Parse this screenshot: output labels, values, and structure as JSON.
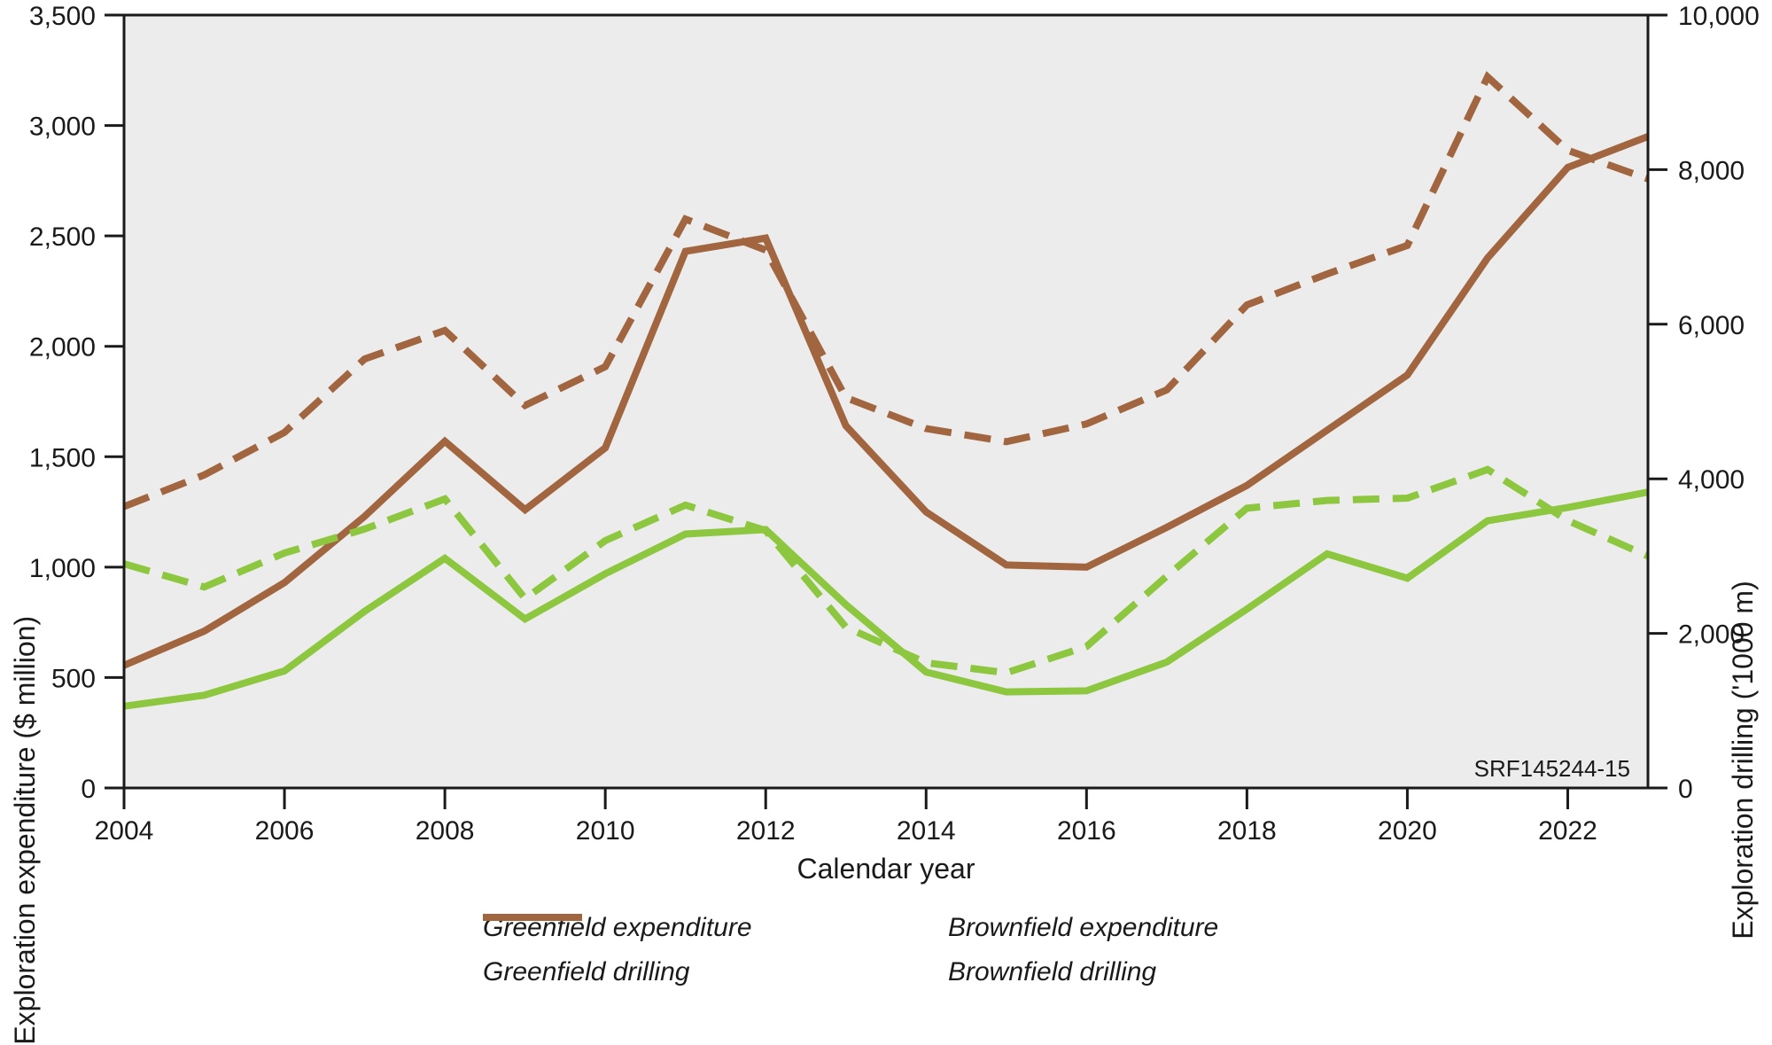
{
  "chart_data": {
    "type": "line",
    "x_label": "Calendar year",
    "x": [
      2004,
      2005,
      2006,
      2007,
      2008,
      2009,
      2010,
      2011,
      2012,
      2013,
      2014,
      2015,
      2016,
      2017,
      2018,
      2019,
      2020,
      2021,
      2022,
      2023
    ],
    "x_tick_years": [
      2004,
      2006,
      2008,
      2010,
      2012,
      2014,
      2016,
      2018,
      2020,
      2022
    ],
    "left_axis": {
      "label": "Exploration expenditure ($ million)",
      "min": 0,
      "max": 3500,
      "ticks": [
        0,
        500,
        1000,
        1500,
        2000,
        2500,
        3000,
        3500
      ]
    },
    "right_axis": {
      "label": "Exploration drilling ('1000 m)",
      "min": 0,
      "max": 10000,
      "ticks": [
        0,
        2000,
        4000,
        6000,
        8000,
        10000
      ]
    },
    "series": [
      {
        "name": "Brownfield drilling",
        "axis": "right",
        "style": "dashed",
        "color": "#a1653f",
        "values": [
          3640,
          4050,
          4600,
          5550,
          5920,
          4950,
          5450,
          7360,
          6960,
          5050,
          4650,
          4480,
          4710,
          5150,
          6250,
          6650,
          7020,
          9200,
          8250,
          7880
        ]
      },
      {
        "name": "Brownfield expenditure",
        "axis": "left",
        "style": "solid",
        "color": "#a1653f",
        "values": [
          555,
          710,
          930,
          1230,
          1570,
          1260,
          1540,
          2430,
          2490,
          1640,
          1250,
          1010,
          1000,
          1180,
          1370,
          1620,
          1870,
          2400,
          2810,
          2950
        ]
      },
      {
        "name": "Greenfield drilling",
        "axis": "right",
        "style": "dashed",
        "color": "#8dc63f",
        "values": [
          2900,
          2600,
          3040,
          3350,
          3740,
          2450,
          3200,
          3660,
          3330,
          2080,
          1620,
          1490,
          1830,
          2740,
          3620,
          3720,
          3750,
          4120,
          3460,
          3000
        ]
      },
      {
        "name": "Greenfield expenditure",
        "axis": "left",
        "style": "solid",
        "color": "#8dc63f",
        "values": [
          370,
          420,
          530,
          800,
          1040,
          765,
          970,
          1150,
          1170,
          830,
          525,
          435,
          440,
          570,
          810,
          1060,
          950,
          1210,
          1270,
          1340
        ]
      }
    ],
    "annotation": "SRF145244-15",
    "colors": {
      "plot_bg": "#ececec",
      "axis": "#1a1a1a",
      "greenfield": "#8dc63f",
      "brownfield": "#a1653f"
    },
    "grid": "off",
    "legend_position": "bottom"
  },
  "legend": {
    "items": [
      {
        "label": "Greenfield expenditure",
        "color": "#8dc63f",
        "style": "solid"
      },
      {
        "label": "Brownfield expenditure",
        "color": "#a1653f",
        "style": "solid"
      },
      {
        "label": "Greenfield drilling",
        "color": "#8dc63f",
        "style": "dashed"
      },
      {
        "label": "Brownfield drilling",
        "color": "#a1653f",
        "style": "dashed"
      }
    ]
  }
}
